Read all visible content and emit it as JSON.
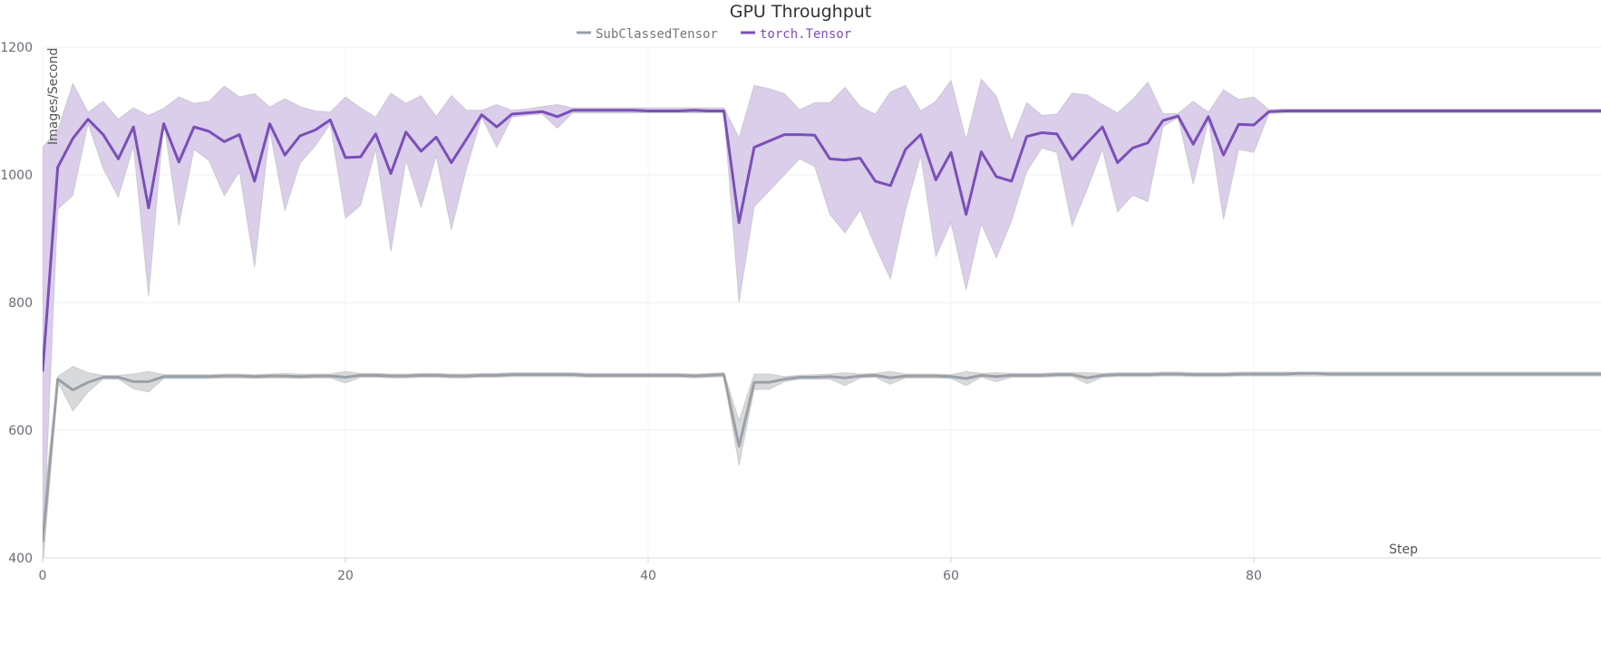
{
  "chart_data": {
    "type": "line",
    "title": "GPU Throughput",
    "xlabel": "Step",
    "ylabel": "Images/Second",
    "xlim": [
      0,
      103
    ],
    "ylim": [
      400,
      1200
    ],
    "xticks": [
      0,
      20,
      40,
      60,
      80
    ],
    "yticks": [
      400,
      600,
      800,
      1000,
      1200
    ],
    "grid": true,
    "legend_placement": "top-center",
    "series": [
      {
        "name": "SubClassedTensor",
        "color": "#9aa0a6",
        "band_color": "#c8c9cb",
        "mean": [
          425,
          680,
          663,
          675,
          683,
          683,
          676,
          676,
          684,
          684,
          684,
          684,
          685,
          685,
          684,
          685,
          685,
          684,
          685,
          685,
          683,
          686,
          686,
          685,
          685,
          686,
          686,
          685,
          685,
          686,
          686,
          687,
          687,
          687,
          687,
          687,
          686,
          686,
          686,
          686,
          686,
          686,
          686,
          685,
          686,
          687,
          575,
          675,
          675,
          680,
          683,
          683,
          684,
          682,
          685,
          686,
          682,
          685,
          685,
          685,
          684,
          681,
          686,
          684,
          686,
          686,
          686,
          687,
          687,
          682,
          686,
          687,
          687,
          687,
          688,
          688,
          687,
          687,
          687,
          688,
          688,
          688,
          688,
          689,
          689,
          688,
          688,
          688,
          688,
          688,
          688,
          688,
          688,
          688,
          688,
          688,
          688,
          688,
          688,
          688,
          688,
          688,
          688,
          688
        ],
        "upper": [
          470,
          684,
          700,
          690,
          686,
          686,
          688,
          692,
          687,
          687,
          687,
          687,
          688,
          688,
          687,
          688,
          689,
          688,
          688,
          688,
          692,
          689,
          689,
          688,
          688,
          689,
          689,
          688,
          688,
          689,
          689,
          690,
          690,
          690,
          690,
          690,
          689,
          689,
          689,
          689,
          689,
          689,
          689,
          688,
          689,
          690,
          615,
          688,
          688,
          684,
          686,
          687,
          688,
          690,
          688,
          689,
          692,
          688,
          688,
          688,
          687,
          692,
          689,
          690,
          689,
          689,
          689,
          690,
          690,
          690,
          689,
          690,
          690,
          690,
          691,
          691,
          690,
          690,
          690,
          691,
          691,
          691,
          691,
          691,
          691,
          691,
          691,
          691,
          691,
          691,
          691,
          691,
          691,
          691,
          691,
          691,
          691,
          691,
          691,
          691,
          691,
          691,
          691,
          691
        ],
        "lower": [
          380,
          676,
          630,
          660,
          680,
          680,
          665,
          660,
          681,
          681,
          681,
          681,
          682,
          682,
          681,
          682,
          682,
          681,
          682,
          682,
          674,
          683,
          683,
          682,
          682,
          683,
          683,
          682,
          682,
          683,
          683,
          684,
          684,
          684,
          684,
          684,
          683,
          683,
          683,
          683,
          683,
          683,
          683,
          682,
          683,
          684,
          545,
          664,
          664,
          676,
          680,
          680,
          680,
          670,
          682,
          683,
          672,
          682,
          682,
          682,
          681,
          670,
          683,
          676,
          683,
          683,
          683,
          684,
          684,
          673,
          683,
          684,
          684,
          684,
          685,
          685,
          684,
          684,
          684,
          685,
          685,
          685,
          685,
          685,
          685,
          685,
          685,
          685,
          685,
          685,
          685,
          685,
          685,
          685,
          685,
          685,
          685,
          685,
          685,
          685,
          685,
          685,
          685,
          685
        ]
      },
      {
        "name": "torch.Tensor",
        "color": "#7b4fb8",
        "band_color": "#d8cbea",
        "mean": [
          692,
          1012,
          1057,
          1087,
          1063,
          1025,
          1075,
          948,
          1080,
          1020,
          1075,
          1068,
          1052,
          1063,
          990,
          1080,
          1031,
          1061,
          1070,
          1086,
          1027,
          1028,
          1064,
          1002,
          1067,
          1037,
          1059,
          1019,
          1056,
          1094,
          1075,
          1095,
          1097,
          1099,
          1091,
          1101,
          1101,
          1101,
          1101,
          1101,
          1100,
          1100,
          1100,
          1101,
          1100,
          1100,
          925,
          1043,
          1053,
          1063,
          1063,
          1062,
          1025,
          1023,
          1026,
          990,
          983,
          1040,
          1063,
          992,
          1035,
          938,
          1036,
          997,
          990,
          1060,
          1066,
          1064,
          1024,
          1050,
          1075,
          1019,
          1042,
          1050,
          1085,
          1092,
          1048,
          1091,
          1031,
          1079,
          1078,
          1099,
          1100,
          1100,
          1100,
          1100,
          1100,
          1100,
          1100,
          1100,
          1100,
          1100,
          1100,
          1100,
          1100,
          1100,
          1100,
          1100,
          1100,
          1100,
          1100,
          1100,
          1100,
          1100
        ],
        "upper": [
          1043,
          1070,
          1143,
          1098,
          1115,
          1087,
          1105,
          1093,
          1104,
          1122,
          1112,
          1115,
          1139,
          1122,
          1127,
          1106,
          1119,
          1107,
          1100,
          1098,
          1122,
          1105,
          1090,
          1128,
          1112,
          1124,
          1091,
          1124,
          1101,
          1101,
          1110,
          1101,
          1103,
          1107,
          1110,
          1105,
          1105,
          1105,
          1105,
          1105,
          1105,
          1105,
          1105,
          1105,
          1105,
          1105,
          1058,
          1140,
          1135,
          1127,
          1102,
          1113,
          1113,
          1137,
          1107,
          1095,
          1130,
          1140,
          1100,
          1115,
          1148,
          1055,
          1150,
          1123,
          1053,
          1113,
          1093,
          1095,
          1128,
          1125,
          1110,
          1097,
          1118,
          1145,
          1096,
          1096,
          1115,
          1098,
          1133,
          1118,
          1122,
          1102,
          1103,
          1103,
          1103,
          1103,
          1103,
          1103,
          1103,
          1103,
          1103,
          1103,
          1103,
          1103,
          1103,
          1103,
          1103,
          1103,
          1103,
          1103,
          1103,
          1103,
          1103,
          1103
        ],
        "lower": [
          400,
          946,
          968,
          1080,
          1010,
          965,
          1045,
          810,
          1082,
          921,
          1040,
          1022,
          967,
          1005,
          855,
          1070,
          944,
          1018,
          1045,
          1080,
          932,
          952,
          1040,
          880,
          1023,
          949,
          1030,
          914,
          1010,
          1090,
          1043,
          1090,
          1093,
          1095,
          1073,
          1097,
          1097,
          1097,
          1097,
          1097,
          1097,
          1097,
          1097,
          1097,
          1097,
          1097,
          800,
          950,
          975,
          1000,
          1025,
          1013,
          938,
          909,
          945,
          888,
          837,
          945,
          1030,
          872,
          925,
          820,
          923,
          870,
          928,
          1005,
          1042,
          1035,
          920,
          978,
          1040,
          942,
          968,
          958,
          1075,
          1090,
          985,
          1085,
          930,
          1040,
          1035,
          1096,
          1097,
          1097,
          1097,
          1097,
          1097,
          1097,
          1097,
          1097,
          1097,
          1097,
          1097,
          1097,
          1097,
          1097,
          1097,
          1097,
          1097,
          1097,
          1097,
          1097,
          1097,
          1097
        ]
      }
    ]
  }
}
